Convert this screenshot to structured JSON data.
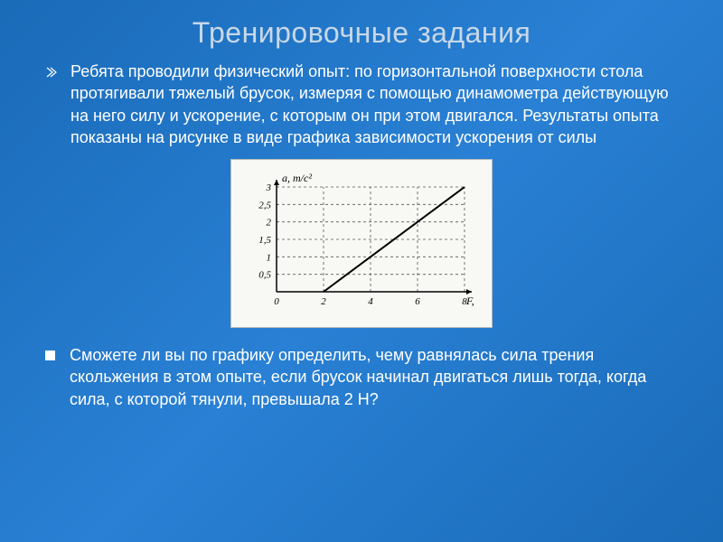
{
  "title": "Тренировочные задания",
  "paragraph1": "Ребята проводили физический опыт: по горизонтальной поверхности стола протягивали тяжелый брусок, измеряя с помощью динамометра действующую на него силу и ускорение, с которым он при этом двигался. Результаты опыта показаны на рисунке в виде графика зависимости ускорения от силы",
  "paragraph2": "Сможете ли вы по графику определить, чему равнялась сила трения скольжения в этом опыте, если брусок начинал двигаться лишь тогда, когда сила, с которой тянули, превышала 2 Н?",
  "chart": {
    "type": "line",
    "y_label": "a, m/c²",
    "x_label": "F, Н",
    "x_ticks": [
      "0",
      "2",
      "4",
      "6",
      "8"
    ],
    "y_ticks": [
      "0,5",
      "1",
      "1,5",
      "2",
      "2,5",
      "3"
    ],
    "xlim": [
      0,
      8
    ],
    "ylim": [
      0,
      3
    ],
    "xtick_step": 2,
    "ytick_step": 0.5,
    "line_points": [
      [
        2,
        0
      ],
      [
        8,
        3
      ]
    ],
    "line_color": "#000000",
    "line_width": 2,
    "grid_color": "#555555",
    "background_color": "#f8f8f5",
    "axis_color": "#000000",
    "tick_font_size": 11,
    "label_font_size": 12,
    "dash_pattern": "3 3"
  },
  "colors": {
    "slide_bg_start": "#1a6bb8",
    "slide_bg_mid": "#2980d4",
    "title_color": "#c8d8e8",
    "body_text": "#ffffff"
  }
}
